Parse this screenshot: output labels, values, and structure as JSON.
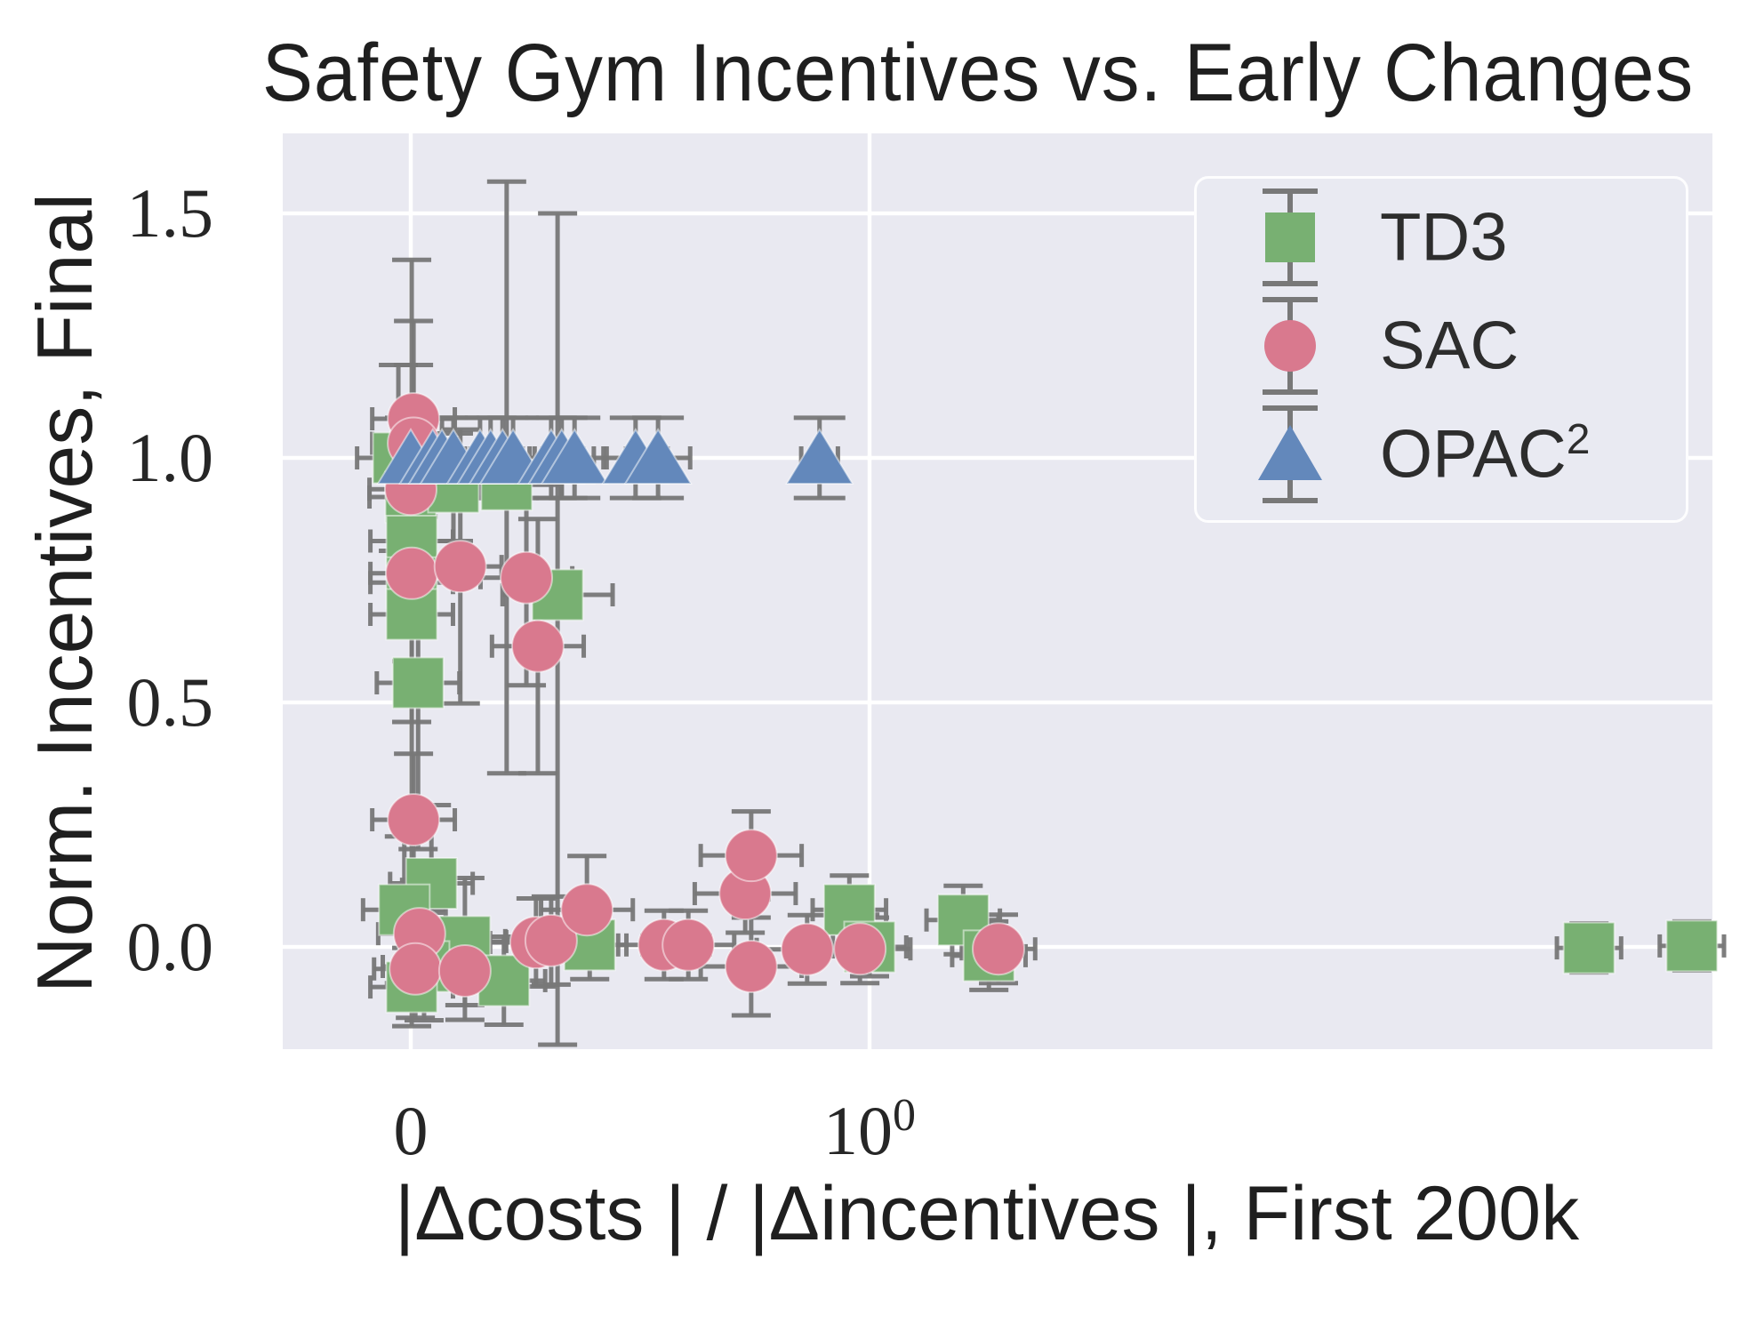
{
  "chart_data": {
    "type": "scatter",
    "title": "Safety Gym Incentives vs. Early Changes",
    "xlabel": "|Δcosts | / |Δincentives |, First 200k",
    "ylabel": "Norm. Incentives, Final",
    "grid": true,
    "legend_position": "upper right",
    "x_axis": {
      "scale": "symlog",
      "linear_region": [
        0,
        1
      ],
      "visible_range": [
        -0.28,
        70
      ],
      "ticks": [
        {
          "value": 0,
          "base": "0",
          "sup": ""
        },
        {
          "value": 1,
          "base": "10",
          "sup": "0"
        }
      ]
    },
    "y_axis": {
      "visible_range": [
        -0.21,
        1.66
      ],
      "ticks": [
        {
          "value": 1.5,
          "label": "1.5"
        },
        {
          "value": 1.0,
          "label": "1.0"
        },
        {
          "value": 0.5,
          "label": "0.5"
        },
        {
          "value": 0.0,
          "label": "0.0"
        }
      ]
    },
    "colors": {
      "plot_bg": "#e9e9f1",
      "grid": "#ffffff",
      "error_bar": "#787878",
      "td3_green": "#78b072",
      "sac_pink": "#d9798e",
      "opac2_blue": "#6388bb",
      "text": "#262626"
    },
    "series": [
      {
        "name": "TD3",
        "label_base": "TD3",
        "label_sup": "",
        "marker": "square",
        "color": "#78b072",
        "points": [
          {
            "x": -0.027,
            "y": 1.0,
            "ye": 0.19,
            "xe": 0.09
          },
          {
            "x": 0.0,
            "y": 0.92,
            "ye": 0.15,
            "xe": 0.09
          },
          {
            "x": 0.093,
            "y": 0.94,
            "ye": 0.11,
            "xe": 0.09
          },
          {
            "x": 0.209,
            "y": 0.945,
            "ye": [
              0.59,
              0.62
            ],
            "xe": 0.12
          },
          {
            "x": 0.002,
            "y": 0.83,
            "ye": 0.18,
            "xe": 0.09
          },
          {
            "x": 0.002,
            "y": 0.745,
            "ye": [
              0.87,
              0.66
            ],
            "xe": 0.09
          },
          {
            "x": 0.002,
            "y": 0.68,
            "ye": 0.22,
            "xe": 0.09
          },
          {
            "x": 0.32,
            "y": 0.72,
            "ye": [
              0.92,
              0.78
            ],
            "xe": 0.12
          },
          {
            "x": 0.016,
            "y": 0.54,
            "ye": 0.34,
            "xe": 0.09
          },
          {
            "x": 0.045,
            "y": 0.13,
            "ye": 0.16,
            "xe": 0.09
          },
          {
            "x": -0.014,
            "y": 0.076,
            "ye": 0.15,
            "xe": 0.09
          },
          {
            "x": 0.118,
            "y": 0.011,
            "ye": 0.13,
            "xe": 0.09
          },
          {
            "x": 0.029,
            "y": -0.04,
            "ye": 0.11,
            "xe": 0.09
          },
          {
            "x": 0.002,
            "y": -0.082,
            "ye": 0.08,
            "xe": 0.09
          },
          {
            "x": 0.203,
            "y": -0.069,
            "ye": 0.09,
            "xe": 0.09
          },
          {
            "x": 0.39,
            "y": 0.004,
            "ye": 0.07,
            "xe": 0.08
          },
          {
            "x": 0.956,
            "y": 0.076,
            "ye": 0.07,
            "xe": 0.08
          },
          {
            "x": 1.0,
            "y": 0.0,
            "ye": 0.06,
            "xe": 0.08
          },
          {
            "x": 1.6,
            "y": 0.055,
            "ye": 0.07,
            "xe": 0.08
          },
          {
            "x": 1.82,
            "y": -0.018,
            "ye": 0.07,
            "xe": 0.08
          },
          {
            "x": 37,
            "y": -0.002,
            "ye": 0.05,
            "xe": 0.07
          },
          {
            "x": 62,
            "y": 0.002,
            "ye": 0.05,
            "xe": 0.07
          }
        ]
      },
      {
        "name": "SAC",
        "label_base": "SAC",
        "label_sup": "",
        "marker": "circle",
        "color": "#d9798e",
        "points": [
          {
            "x": 0.006,
            "y": 1.08,
            "ye": 0.2,
            "xe": 0.09
          },
          {
            "x": 0.006,
            "y": 1.03,
            "ye": 0.16,
            "xe": 0.09
          },
          {
            "x": 0.0,
            "y": 0.936,
            "ye": 0.15,
            "xe": 0.09
          },
          {
            "x": 0.002,
            "y": 0.764,
            "ye": 0.18,
            "xe": 0.09
          },
          {
            "x": 0.108,
            "y": 0.778,
            "ye": 0.28,
            "xe": 0.09
          },
          {
            "x": 0.252,
            "y": 0.755,
            "ye": 0.22,
            "xe": 0.1
          },
          {
            "x": 0.277,
            "y": 0.615,
            "ye": 0.26,
            "xe": 0.1
          },
          {
            "x": 0.006,
            "y": 0.26,
            "ye": 0.135,
            "xe": 0.09
          },
          {
            "x": 0.019,
            "y": 0.027,
            "ye": 0.11,
            "xe": 0.09
          },
          {
            "x": 0.01,
            "y": -0.045,
            "ye": 0.1,
            "xe": 0.09
          },
          {
            "x": 0.118,
            "y": -0.049,
            "ye": 0.1,
            "xe": 0.09
          },
          {
            "x": 0.273,
            "y": 0.009,
            "ye": 0.09,
            "xe": 0.1
          },
          {
            "x": 0.306,
            "y": 0.013,
            "ye": 0.09,
            "xe": 0.1
          },
          {
            "x": 0.384,
            "y": 0.076,
            "ye": 0.11,
            "xe": 0.1
          },
          {
            "x": 0.552,
            "y": 0.004,
            "ye": 0.07,
            "xe": 0.1
          },
          {
            "x": 0.605,
            "y": 0.004,
            "ye": 0.07,
            "xe": 0.1
          },
          {
            "x": 0.729,
            "y": 0.109,
            "ye": 0.08,
            "xe": 0.11
          },
          {
            "x": 0.742,
            "y": 0.187,
            "ye": 0.09,
            "xe": 0.11
          },
          {
            "x": 0.742,
            "y": -0.04,
            "ye": 0.1,
            "xe": 0.11
          },
          {
            "x": 0.864,
            "y": -0.005,
            "ye": 0.07,
            "xe": 0.11
          },
          {
            "x": 0.979,
            "y": -0.004,
            "ye": 0.07,
            "xe": 0.11
          },
          {
            "x": 1.91,
            "y": -0.004,
            "ye": 0.07,
            "xe": 0.08
          }
        ]
      },
      {
        "name": "OPAC²",
        "label_base": "OPAC",
        "label_sup": "2",
        "marker": "triangle",
        "color": "#6388bb",
        "points": [
          {
            "x": 0.0,
            "y": 1.0,
            "ye": 0.082,
            "xe": 0.07
          },
          {
            "x": 0.048,
            "y": 1.0,
            "ye": 0.082,
            "xe": 0.07
          },
          {
            "x": 0.068,
            "y": 1.0,
            "ye": 0.082,
            "xe": 0.07
          },
          {
            "x": 0.093,
            "y": 1.0,
            "ye": 0.082,
            "xe": 0.07
          },
          {
            "x": 0.151,
            "y": 1.0,
            "ye": 0.082,
            "xe": 0.07
          },
          {
            "x": 0.174,
            "y": 1.0,
            "ye": 0.082,
            "xe": 0.07
          },
          {
            "x": 0.2,
            "y": 1.0,
            "ye": 0.082,
            "xe": 0.07
          },
          {
            "x": 0.223,
            "y": 1.0,
            "ye": 0.082,
            "xe": 0.07
          },
          {
            "x": 0.306,
            "y": 1.0,
            "ye": 0.082,
            "xe": 0.07
          },
          {
            "x": 0.329,
            "y": 1.0,
            "ye": 0.082,
            "xe": 0.07
          },
          {
            "x": 0.357,
            "y": 1.0,
            "ye": 0.082,
            "xe": 0.07
          },
          {
            "x": 0.49,
            "y": 1.0,
            "ye": 0.082,
            "xe": 0.07
          },
          {
            "x": 0.539,
            "y": 1.0,
            "ye": 0.082,
            "xe": 0.07
          },
          {
            "x": 0.891,
            "y": 1.0,
            "ye": 0.082,
            "xe": 0.04
          }
        ]
      }
    ]
  }
}
